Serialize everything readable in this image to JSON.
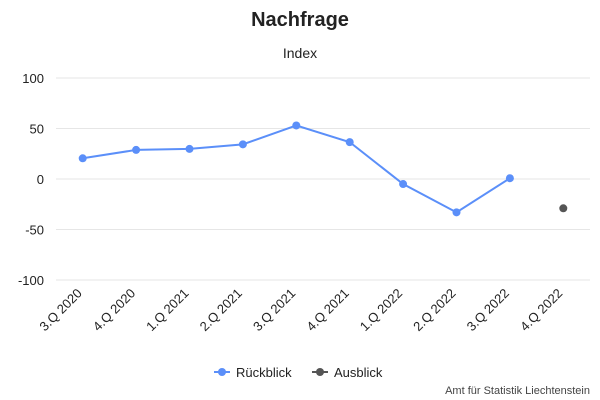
{
  "chart_data": {
    "type": "line",
    "title": "Nachfrage",
    "subtitle": "Index",
    "ylim": [
      -100,
      100
    ],
    "y_ticks": [
      100,
      50,
      0,
      -50,
      -100
    ],
    "grid": true,
    "categories": [
      "3.Q 2020",
      "4.Q 2020",
      "1.Q 2021",
      "2.Q 2021",
      "3.Q 2021",
      "4.Q 2021",
      "1.Q 2022",
      "2.Q 2022",
      "3.Q 2022",
      "4.Q 2022"
    ],
    "series": [
      {
        "name": "Rückblick",
        "color": "#5b8ff9",
        "values": [
          20.5,
          28.8,
          29.8,
          34.3,
          53.0,
          36.5,
          -5.0,
          -33.0,
          0.8,
          null
        ]
      },
      {
        "name": "Ausblick",
        "color": "#555555",
        "values": [
          null,
          null,
          null,
          null,
          null,
          null,
          null,
          null,
          null,
          -29.0
        ]
      }
    ],
    "legend_position": "bottom-center",
    "credit": "Amt für Statistik Liechtenstein"
  }
}
